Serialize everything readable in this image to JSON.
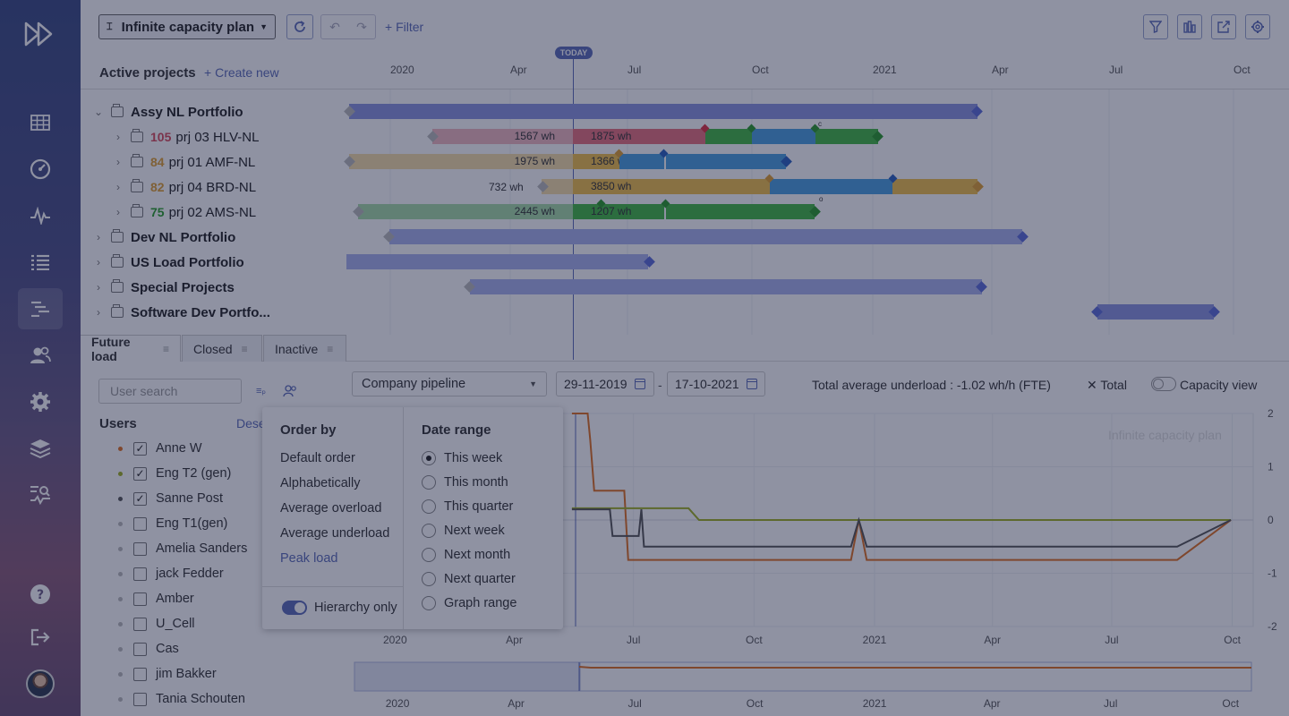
{
  "sidebar": {
    "items": [
      "grid-icon",
      "dashboard-icon",
      "activity-icon",
      "list-icon",
      "gantt-icon",
      "users-icon",
      "gear-icon",
      "layers-icon",
      "analytics-icon",
      "help-icon",
      "logout-icon"
    ]
  },
  "toolbar": {
    "plan_label": "Infinite capacity plan",
    "filter_label": "Filter"
  },
  "gantt": {
    "title": "Active projects",
    "create_new": "Create new",
    "today": "TODAY",
    "ticks": [
      "2020",
      "Apr",
      "Jul",
      "Oct",
      "2021",
      "Apr",
      "Jul",
      "Oct"
    ],
    "rows": [
      {
        "name": "Assy NL Portfolio"
      },
      {
        "num": "105",
        "name": "prj 03 HLV-NL",
        "color": "#d94a5a"
      },
      {
        "num": "84",
        "name": "prj 01 AMF-NL",
        "color": "#e0a030"
      },
      {
        "num": "82",
        "name": "prj 04 BRD-NL",
        "color": "#e0a030"
      },
      {
        "num": "75",
        "name": "prj 02 AMS-NL",
        "color": "#2aa02a"
      },
      {
        "name": "Dev NL Portfolio"
      },
      {
        "name": "US Load Portfolio"
      },
      {
        "name": "Special Projects"
      },
      {
        "name": "Software Dev Portfo..."
      }
    ],
    "bar_labels": {
      "r1a": "1567 wh",
      "r1b": "1875 wh",
      "r2a": "1975 wh",
      "r2b": "1366 wh",
      "r3a": "732 wh",
      "r3b": "3850 wh",
      "r4a": "2445 wh",
      "r4b": "1207 wh"
    },
    "marker_c": "c",
    "marker_o": "o"
  },
  "tabs": [
    "Future load",
    "Closed",
    "Inactive"
  ],
  "users_panel": {
    "search_placeholder": "User search",
    "title": "Users",
    "deselect": "Dese",
    "users": [
      {
        "name": "Anne W",
        "checked": "✓",
        "color": "#e07020"
      },
      {
        "name": "Eng T2 (gen)",
        "checked": "✓",
        "color": "#a0b020"
      },
      {
        "name": "Sanne Post",
        "checked": "✓",
        "color": "#555"
      },
      {
        "name": "Eng T1(gen)",
        "checked": "",
        "color": "#bbb"
      },
      {
        "name": "Amelia Sanders",
        "checked": "",
        "color": "#bbb"
      },
      {
        "name": "jack Fedder",
        "checked": "",
        "color": "#bbb"
      },
      {
        "name": "Amber",
        "checked": "",
        "color": "#bbb"
      },
      {
        "name": "U_Cell",
        "checked": "",
        "color": "#bbb"
      },
      {
        "name": "Cas",
        "checked": "",
        "color": "#bbb"
      },
      {
        "name": "jim Bakker",
        "checked": "",
        "color": "#bbb"
      },
      {
        "name": "Tania Schouten",
        "checked": "",
        "color": "#bbb"
      }
    ]
  },
  "controls": {
    "pipeline": "Company pipeline",
    "date_from": "29-11-2019",
    "date_sep": "-",
    "date_to": "17-10-2021",
    "info": "Total average underload : -1.02 wh/h (FTE)",
    "total": "Total",
    "capacity_view": "Capacity view"
  },
  "popup": {
    "order_title": "Order by",
    "order_options": [
      "Default order",
      "Alphabetically",
      "Average overload",
      "Average underload",
      "Peak load"
    ],
    "hierarchy_label": "Hierarchy only",
    "range_title": "Date range",
    "range_options": [
      "This week",
      "This month",
      "This quarter",
      "Next week",
      "Next month",
      "Next quarter",
      "Graph range"
    ],
    "range_selected": "This week"
  },
  "chart": {
    "watermark": "Infinite capacity plan",
    "x_ticks": [
      "2020",
      "Apr",
      "Jul",
      "Oct",
      "2021",
      "Apr",
      "Jul",
      "Oct"
    ],
    "y_ticks": [
      "2",
      "1",
      "0",
      "-1",
      "-2"
    ]
  },
  "chart_data": {
    "type": "line",
    "title": "Infinite capacity plan",
    "xlabel": "",
    "ylabel": "",
    "ylim": [
      -2,
      2
    ],
    "x_ticks": [
      "2020",
      "Apr",
      "Jul",
      "Oct",
      "2021",
      "Apr",
      "Jul",
      "Oct"
    ],
    "series": [
      {
        "name": "Anne W",
        "color": "#e07020",
        "x": [
          "2020-05-15",
          "2020-05-27",
          "2020-05-29",
          "2020-06-01",
          "2020-06-24",
          "2020-06-27",
          "2020-12-14",
          "2020-12-20",
          "2020-12-26",
          "2021-08-20",
          "2021-09-30"
        ],
        "values": [
          2.0,
          2.0,
          1.5,
          0.55,
          0.55,
          -0.75,
          -0.75,
          0.0,
          -0.75,
          -0.75,
          0.0
        ]
      },
      {
        "name": "Eng T2 (gen)",
        "color": "#a0b020",
        "x": [
          "2020-05-15",
          "2020-08-12",
          "2020-08-20",
          "2021-09-30"
        ],
        "values": [
          0.22,
          0.22,
          0.0,
          0.0
        ]
      },
      {
        "name": "Sanne Post",
        "color": "#555",
        "x": [
          "2020-05-15",
          "2020-06-13",
          "2020-06-15",
          "2020-07-05",
          "2020-07-07",
          "2020-07-09",
          "2020-12-14",
          "2020-12-20",
          "2020-12-26",
          "2021-08-20",
          "2021-09-30"
        ],
        "values": [
          0.2,
          0.2,
          -0.3,
          -0.3,
          0.2,
          -0.5,
          -0.5,
          0.0,
          -0.5,
          -0.5,
          0.0
        ]
      }
    ]
  }
}
